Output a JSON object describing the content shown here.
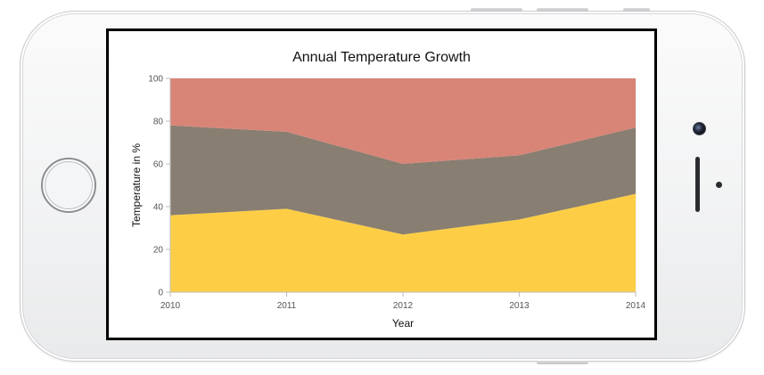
{
  "chart_data": {
    "type": "area",
    "stacked": true,
    "percent_stacked": true,
    "title": "Annual Temperature Growth",
    "xlabel": "Year",
    "ylabel": "Temperature in %",
    "categories": [
      "2010",
      "2011",
      "2012",
      "2013",
      "2014"
    ],
    "y_ticks": [
      "0",
      "20",
      "40",
      "60",
      "80",
      "100"
    ],
    "ylim": [
      0,
      100
    ],
    "grid": true,
    "series": [
      {
        "values": [
          36,
          39,
          27,
          34,
          46
        ],
        "color": "#fdca35"
      },
      {
        "values": [
          42,
          36,
          33,
          30,
          31
        ],
        "color": "#7e7365"
      },
      {
        "values": [
          22,
          25,
          40,
          36,
          23
        ],
        "color": "#d57b6c"
      }
    ],
    "cumulative": [
      [
        36,
        39,
        27,
        34,
        46
      ],
      [
        78,
        75,
        60,
        64,
        77
      ],
      [
        100,
        100,
        100,
        100,
        100
      ]
    ]
  }
}
